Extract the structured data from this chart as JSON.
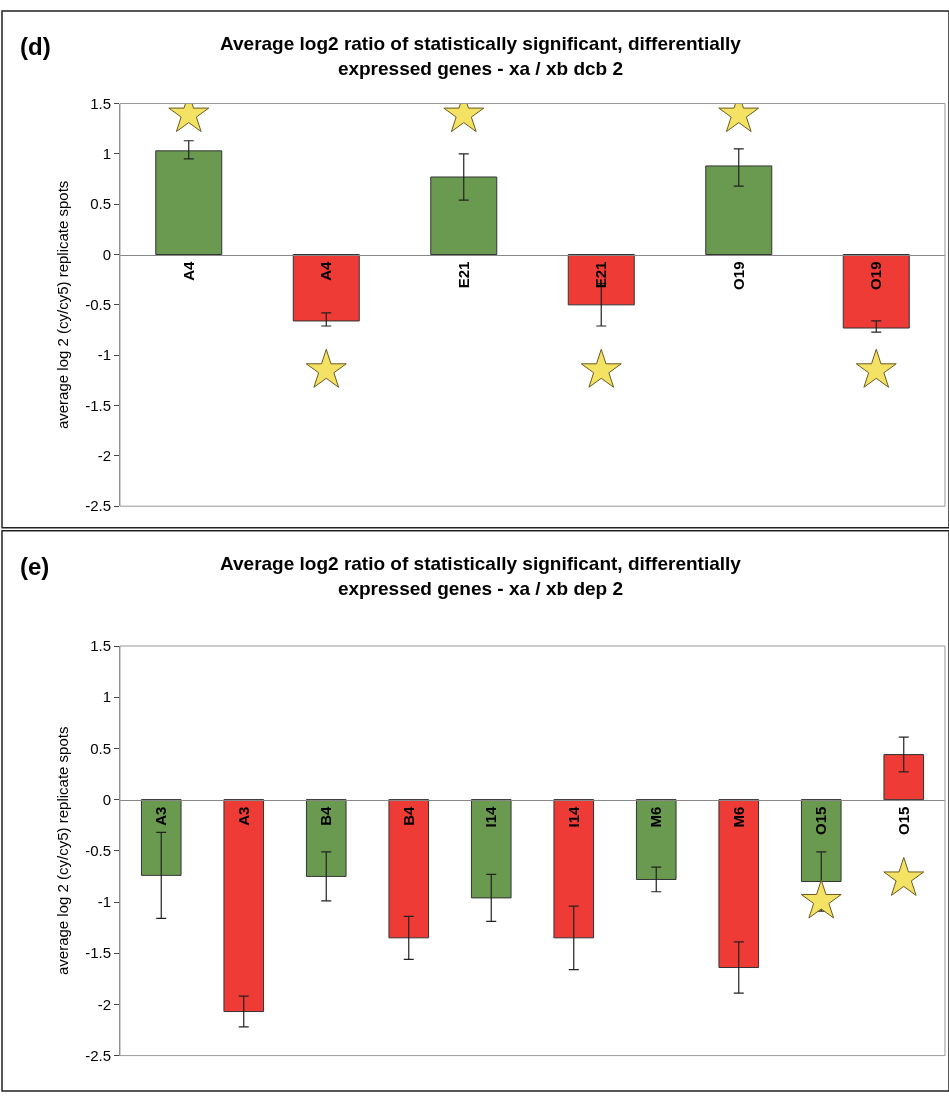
{
  "chart_data": [
    {
      "type": "bar",
      "title": "Average log2 ratio of statistically significant, differentially\nexpressed genes - xa / xb dcb 2",
      "ylabel": "average log 2 (cy/cy5) replicate spots",
      "annotations": [
        "(d)"
      ],
      "categories": [
        "A4",
        "A4",
        "E21",
        "E21",
        "O19",
        "O19"
      ],
      "series": [
        {
          "colors": [
            "#6a9a4f",
            "#ee3b36",
            "#6a9a4f",
            "#ee3b36",
            "#6a9a4f",
            "#ee3b36"
          ],
          "values": [
            1.03,
            -0.66,
            0.77,
            -0.5,
            0.88,
            -0.73
          ],
          "errors": [
            [
              0.95,
              1.13
            ],
            [
              -0.71,
              -0.58
            ],
            [
              0.54,
              1.0
            ],
            [
              -0.71,
              -0.29
            ],
            [
              0.68,
              1.05
            ],
            [
              -0.77,
              -0.66
            ]
          ]
        },
        {
          "type": "scatter",
          "marker": "star",
          "color": "#f4e264",
          "values": [
            1.39,
            -1.15,
            1.39,
            -1.15,
            1.39,
            -1.15
          ]
        }
      ],
      "ylim": [
        -2.5,
        1.5
      ],
      "yticks": [
        -2.5,
        -2,
        -1.5,
        -1,
        -0.5,
        0,
        0.5,
        1,
        1.5
      ],
      "grid": false
    },
    {
      "type": "bar",
      "title": "Average log2 ratio of statistically significant, differentially\nexpressed genes - xa / xb dep 2",
      "ylabel": "average log 2 (cy/cy5) replicate spots",
      "annotations": [
        "(e)"
      ],
      "categories": [
        "A3",
        "A3",
        "B4",
        "B4",
        "I14",
        "I14",
        "M6",
        "M6",
        "O15",
        "O15"
      ],
      "series": [
        {
          "colors": [
            "#6a9a4f",
            "#ee3b36",
            "#6a9a4f",
            "#ee3b36",
            "#6a9a4f",
            "#ee3b36",
            "#6a9a4f",
            "#ee3b36",
            "#6a9a4f",
            "#ee3b36"
          ],
          "values": [
            -0.74,
            -2.07,
            -0.75,
            -1.35,
            -0.96,
            -1.35,
            -0.78,
            -1.64,
            -0.8,
            0.44
          ],
          "errors": [
            0.42,
            0.15,
            0.24,
            0.21,
            0.23,
            0.31,
            0.12,
            0.25,
            0.29,
            0.17
          ]
        },
        {
          "type": "scatter",
          "marker": "star",
          "color": "#f4e264",
          "values": [
            null,
            null,
            null,
            null,
            null,
            null,
            null,
            null,
            -0.99,
            -0.77
          ]
        }
      ],
      "ylim": [
        -2.5,
        1.5
      ],
      "yticks": [
        -2.5,
        -2,
        -1.5,
        -1,
        -0.5,
        0,
        0.5,
        1,
        1.5
      ],
      "grid": false
    }
  ]
}
